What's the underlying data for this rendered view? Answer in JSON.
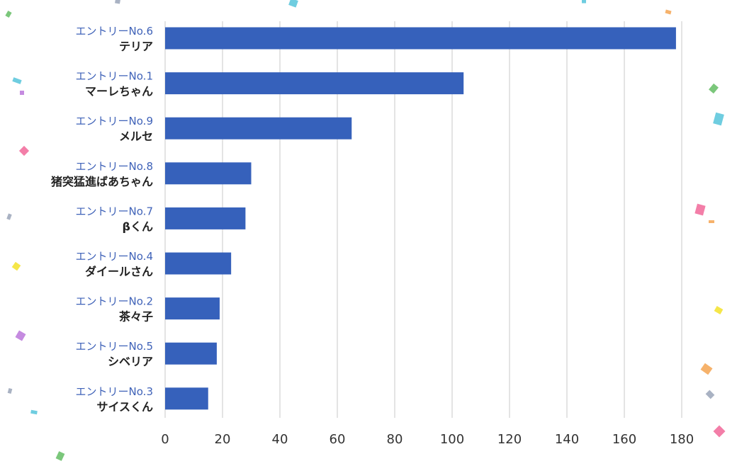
{
  "chart_data": {
    "type": "bar",
    "orientation": "horizontal",
    "title": "",
    "xlabel": "",
    "ylabel": "",
    "xlim": [
      0,
      180
    ],
    "x_ticks": [
      0,
      20,
      40,
      60,
      80,
      100,
      120,
      140,
      160,
      180
    ],
    "grid": true,
    "legend": "none",
    "categories": [
      {
        "entry": "エントリーNo.6",
        "name": "テリア"
      },
      {
        "entry": "エントリーNo.1",
        "name": "マーレちゃん"
      },
      {
        "entry": "エントリーNo.9",
        "name": "メルセ"
      },
      {
        "entry": "エントリーNo.8",
        "name": "猪突猛進ばあちゃん"
      },
      {
        "entry": "エントリーNo.7",
        "name": "βくん"
      },
      {
        "entry": "エントリーNo.4",
        "name": "ダイールさん"
      },
      {
        "entry": "エントリーNo.2",
        "name": "茶々子"
      },
      {
        "entry": "エントリーNo.5",
        "name": "シベリア"
      },
      {
        "entry": "エントリーNo.3",
        "name": "サイスくん"
      }
    ],
    "values": [
      178,
      104,
      65,
      30,
      28,
      23,
      19,
      18,
      15
    ],
    "colors": {
      "bar": "#3661bb",
      "entry_label": "#3f62b8",
      "name_label": "#222222",
      "tick_label": "#333333",
      "grid": "#c8c8c8"
    }
  },
  "decorations": {
    "confetti_colors": [
      "#6fcde0",
      "#f37ea8",
      "#7bc77b",
      "#f5e649",
      "#f6b26b",
      "#c58be0",
      "#a9b2c3"
    ]
  }
}
